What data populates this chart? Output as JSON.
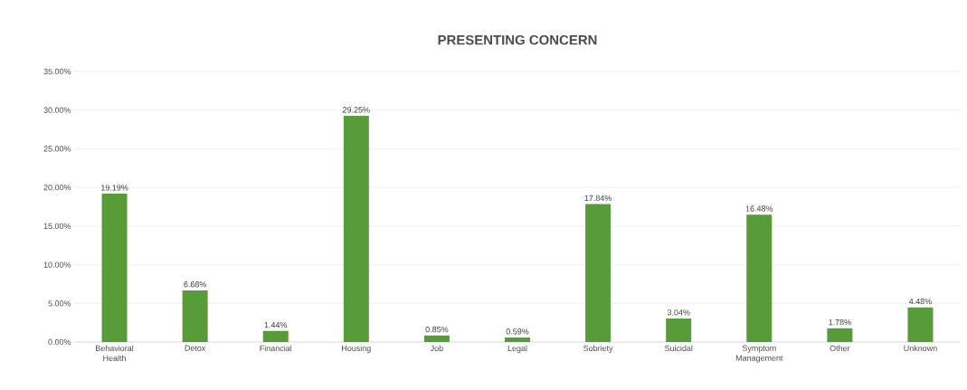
{
  "chart_data": {
    "type": "bar",
    "title": "PRESENTING CONCERN",
    "categories": [
      "Behavioral Health",
      "Detox",
      "Financial",
      "Housing",
      "Job",
      "Legal",
      "Sobriety",
      "Suicidal",
      "Symptom Management",
      "Other",
      "Unknown"
    ],
    "values": [
      19.19,
      6.68,
      1.44,
      29.25,
      0.85,
      0.59,
      17.84,
      3.04,
      16.48,
      1.78,
      4.48
    ],
    "value_labels": [
      "19.19%",
      "6.68%",
      "1.44%",
      "29.25%",
      "0.85%",
      "0.59%",
      "17.84%",
      "3.04%",
      "16.48%",
      "1.78%",
      "4.48%"
    ],
    "color": "#589c3a",
    "ylim": [
      0,
      35
    ],
    "yticks": [
      {
        "value": 0,
        "label": "0.00%"
      },
      {
        "value": 5,
        "label": "5.00%"
      },
      {
        "value": 10,
        "label": "10.00%"
      },
      {
        "value": 15,
        "label": "15.00%"
      },
      {
        "value": 20,
        "label": "20.00%"
      },
      {
        "value": 25,
        "label": "25.00%"
      },
      {
        "value": 30,
        "label": "30.00%"
      },
      {
        "value": 35,
        "label": "35.00%"
      }
    ],
    "grid": "y"
  }
}
